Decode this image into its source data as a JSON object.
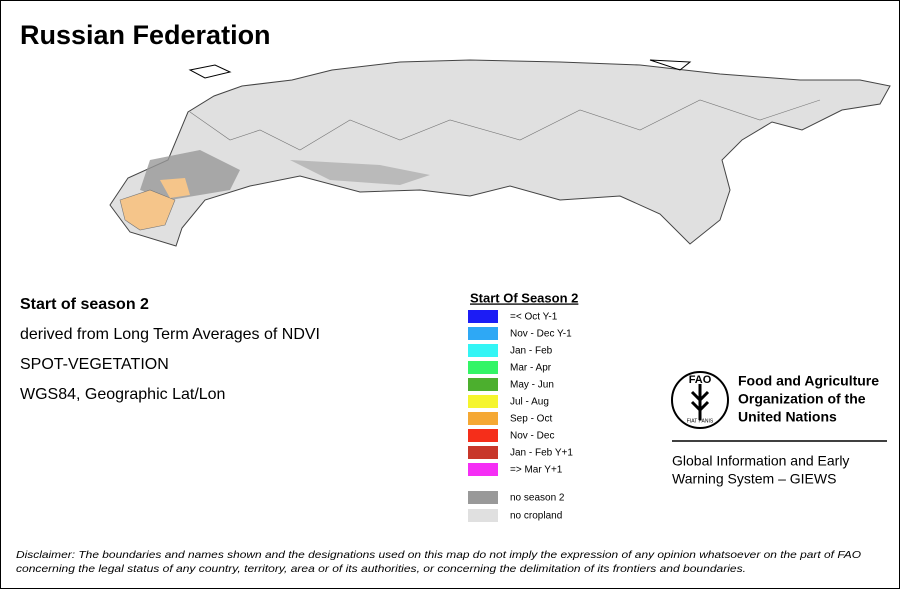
{
  "title": "Russian Federation",
  "info": [
    "Start of season 2",
    "derived from Long Term Averages of NDVI",
    "SPOT-VEGETATION",
    "WGS84, Geographic Lat/Lon"
  ],
  "legend": {
    "title": "Start Of Season 2",
    "items": [
      {
        "label": "=< Oct Y-1",
        "color": "#1c1cf5"
      },
      {
        "label": "Nov - Dec Y-1",
        "color": "#2ea8f5"
      },
      {
        "label": "Jan - Feb",
        "color": "#33f5f5"
      },
      {
        "label": "Mar - Apr",
        "color": "#33f566"
      },
      {
        "label": "May - Jun",
        "color": "#4caf2e"
      },
      {
        "label": "Jul - Aug",
        "color": "#f5f52e"
      },
      {
        "label": "Sep - Oct",
        "color": "#f5a833"
      },
      {
        "label": "Nov - Dec",
        "color": "#f52e1a"
      },
      {
        "label": "Jan - Feb Y+1",
        "color": "#c8372a"
      },
      {
        "label": "=> Mar Y+1",
        "color": "#f52ef5"
      }
    ],
    "extra": [
      {
        "label": "no season 2",
        "color": "#999999"
      },
      {
        "label": "no cropland",
        "color": "#e0e0e0"
      }
    ]
  },
  "logo": {
    "acronym": "FAO",
    "motto": "FIAT PANIS",
    "org": [
      "Food and Agriculture",
      "Organization of the",
      "United Nations"
    ],
    "system": [
      "Global Information and Early",
      "Warning System – GIEWS"
    ]
  },
  "disclaimer": [
    "Disclaimer: The boundaries and names shown and the designations used on this map do not imply the expression of any opinion whatsoever on the part of FAO",
    "concerning the legal status of any country, territory, area or of its authorities, or concerning the delimitation of its frontiers and boundaries."
  ]
}
